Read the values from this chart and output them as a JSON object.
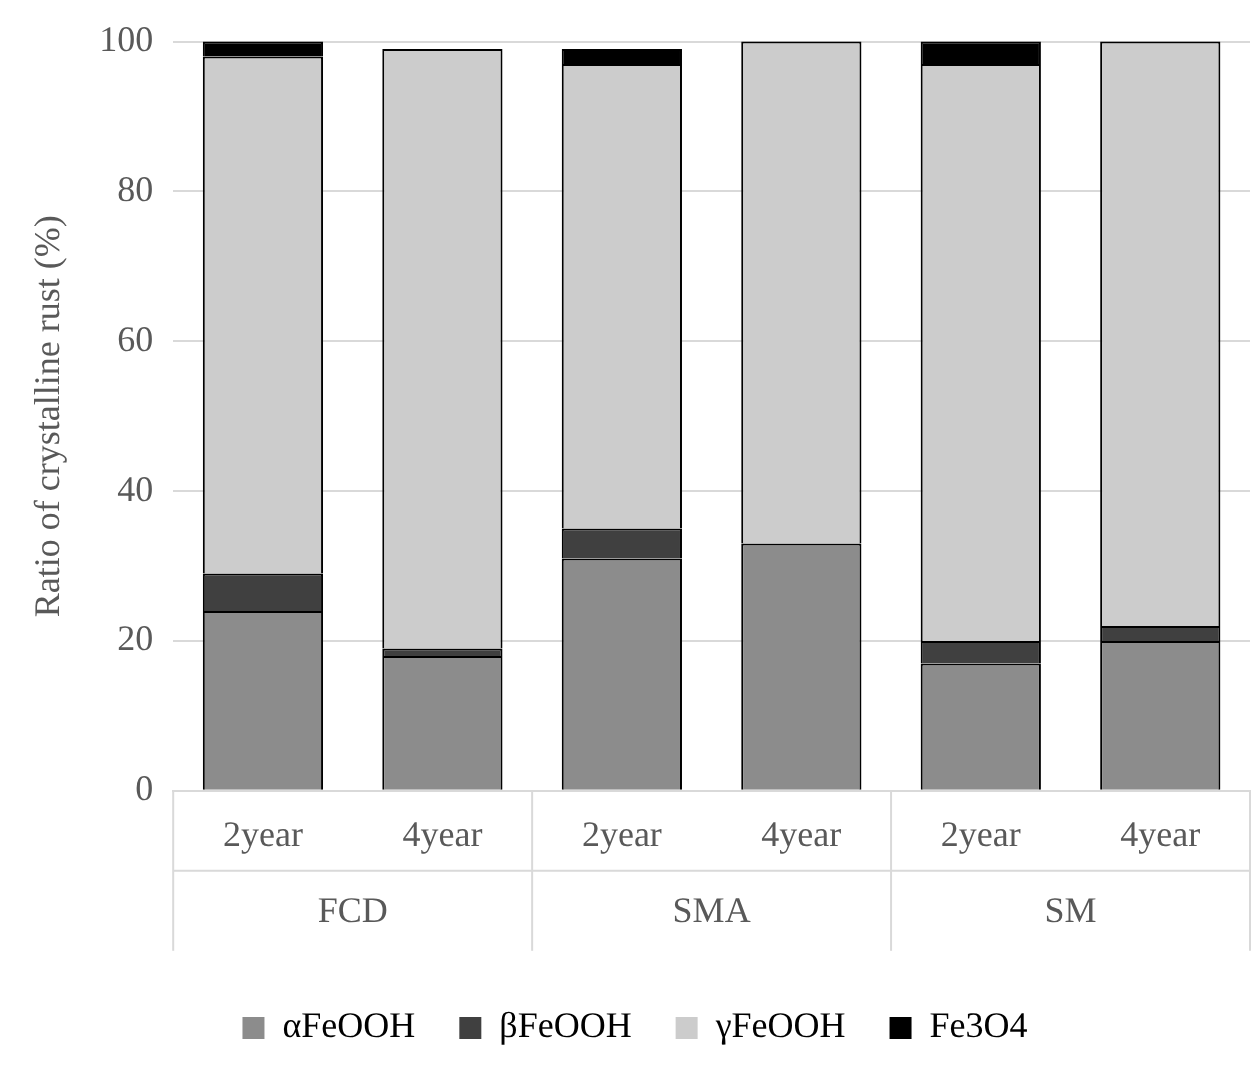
{
  "chart_data": {
    "type": "bar",
    "stacked": true,
    "ylabel": "Ratio of crystalline rust (%)",
    "categories": [
      "2year",
      "4year",
      "2year",
      "4year",
      "2year",
      "4year"
    ],
    "annotations": [
      "FCD",
      "SMA",
      "SM"
    ],
    "series": [
      {
        "name": "αFeOOH",
        "color": "#8c8c8c",
        "values": [
          24,
          18,
          31,
          33,
          17,
          20
        ]
      },
      {
        "name": "βFeOOH",
        "color": "#404040",
        "values": [
          5,
          1,
          4,
          0,
          3,
          2
        ]
      },
      {
        "name": "γFeOOH",
        "color": "#cccccc",
        "values": [
          69,
          80,
          62,
          67,
          77,
          78
        ]
      },
      {
        "name": "Fe3O4",
        "color": "#000000",
        "values": [
          2,
          0,
          2,
          0,
          3,
          0
        ]
      }
    ],
    "ylim": [
      0,
      100
    ],
    "yticks": [
      0,
      20,
      40,
      60,
      80,
      100
    ],
    "grid": "y",
    "legend": "bottom"
  }
}
